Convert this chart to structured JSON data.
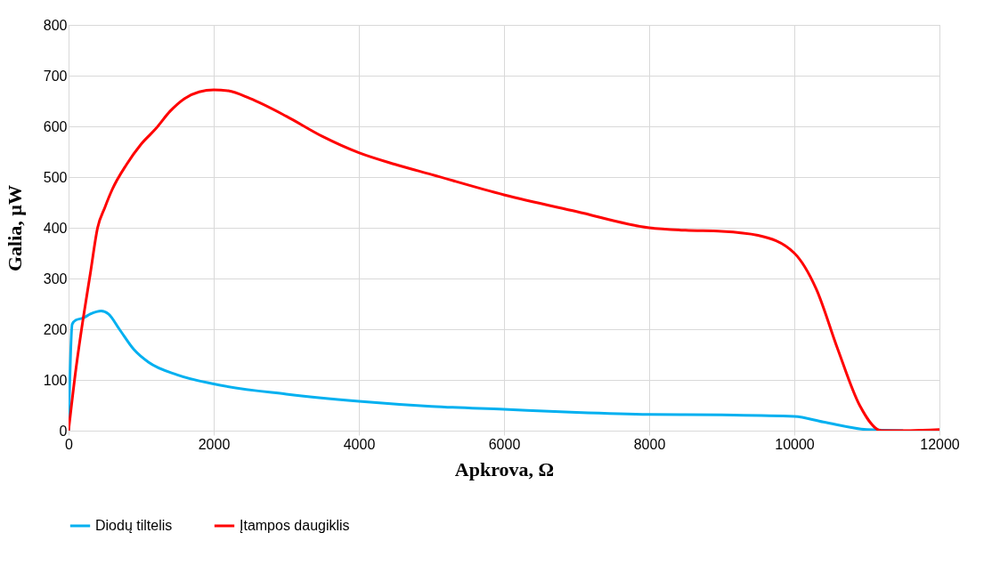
{
  "chart_data": {
    "type": "line",
    "xlabel": "Apkrova, Ω",
    "ylabel": "Galia, µW",
    "xlim": [
      0,
      12000
    ],
    "xticks": [
      0,
      2000,
      4000,
      6000,
      8000,
      10000,
      12000
    ],
    "ylim": [
      0,
      800
    ],
    "yticks": [
      0,
      100,
      200,
      300,
      400,
      500,
      600,
      700,
      800
    ],
    "grid": true,
    "legend": "bottom",
    "marker": "none",
    "line_style": "solid",
    "series": [
      {
        "name": "Diodų tiltelis",
        "color": "#00b0f0",
        "x": [
          0,
          50,
          100,
          200,
          300,
          450,
          550,
          700,
          900,
          1100,
          1500,
          2000,
          3000,
          4000,
          5000,
          6000,
          7000,
          8000,
          9000,
          10000,
          10400,
          11000,
          11500
        ],
        "values": [
          0,
          210,
          218,
          222,
          230,
          236,
          230,
          200,
          160,
          135,
          110,
          92,
          72,
          58,
          48,
          42,
          36,
          32,
          31,
          28,
          17,
          2,
          0
        ]
      },
      {
        "name": "Įtampos daugiklis",
        "color": "#ff0000",
        "x": [
          0,
          100,
          200,
          300,
          400,
          500,
          600,
          800,
          1000,
          1200,
          1400,
          1600,
          1800,
          2000,
          2200,
          2500,
          3000,
          3500,
          4000,
          4500,
          5000,
          6000,
          7000,
          8000,
          8500,
          9000,
          9500,
          10000,
          10300,
          10600,
          10900,
          11200,
          11600,
          12000
        ],
        "values": [
          0,
          120,
          220,
          310,
          400,
          440,
          475,
          525,
          565,
          595,
          630,
          655,
          668,
          672,
          670,
          655,
          620,
          580,
          548,
          525,
          505,
          465,
          432,
          400,
          395,
          393,
          385,
          350,
          280,
          160,
          50,
          0,
          0,
          2
        ]
      }
    ]
  }
}
